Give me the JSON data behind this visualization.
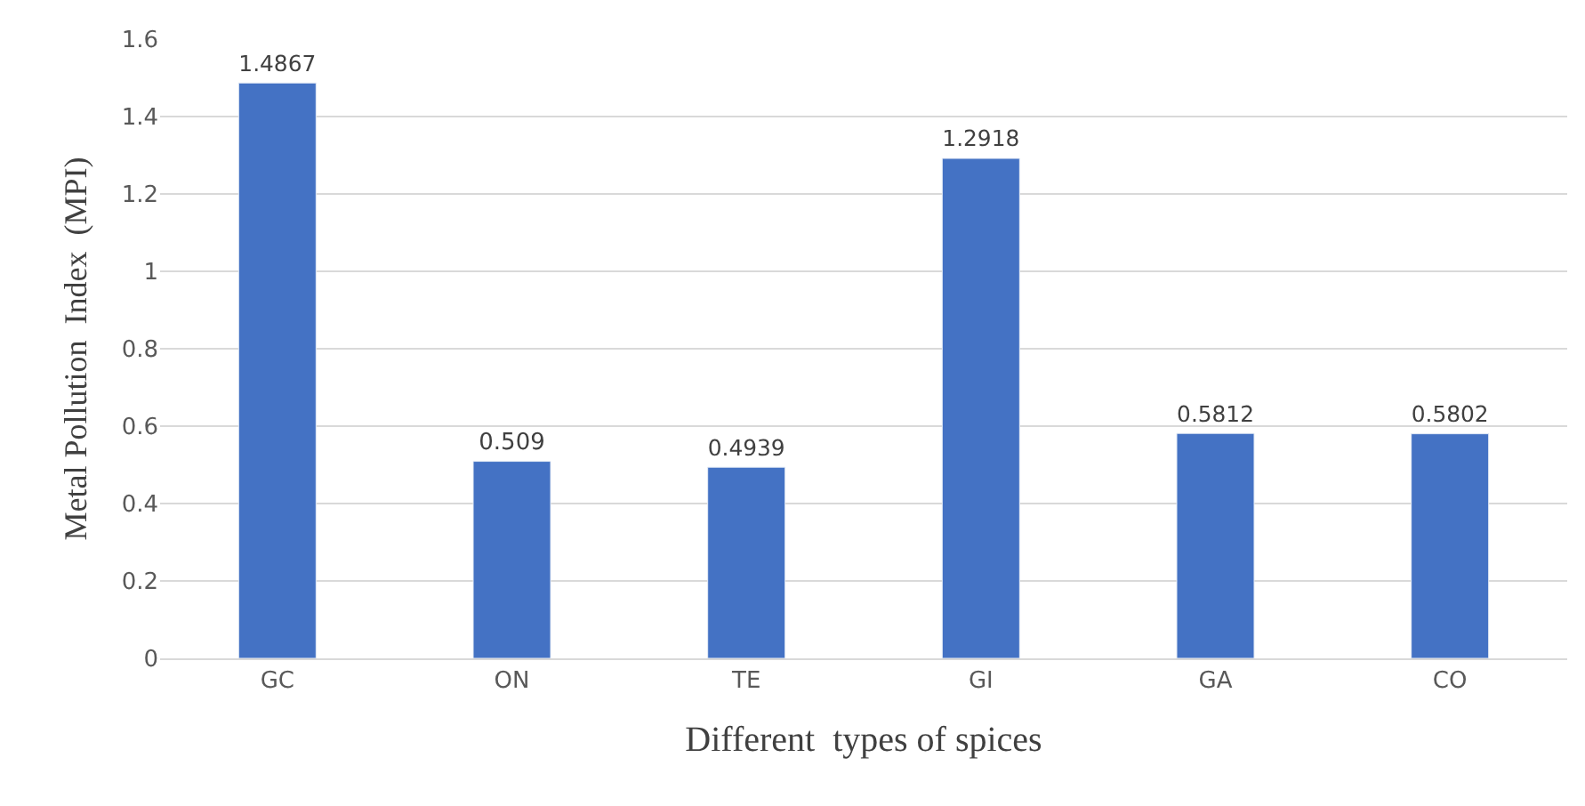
{
  "chart_data": {
    "type": "bar",
    "xlabel": "Different  types of spices",
    "ylabel": "Metal Pollution  Index  (MPI)",
    "categories": [
      "GC",
      "ON",
      "TE",
      "GI",
      "GA",
      "CO"
    ],
    "values": [
      1.4867,
      0.509,
      0.4939,
      1.2918,
      0.5812,
      0.5802
    ],
    "color": "#4472c4",
    "ylim": [
      0,
      1.6
    ],
    "yticks": [
      0,
      0.2,
      0.4,
      0.6,
      0.8,
      1,
      1.2,
      1.4,
      1.6
    ],
    "grid": "y",
    "data_labels": true,
    "legend": false
  }
}
